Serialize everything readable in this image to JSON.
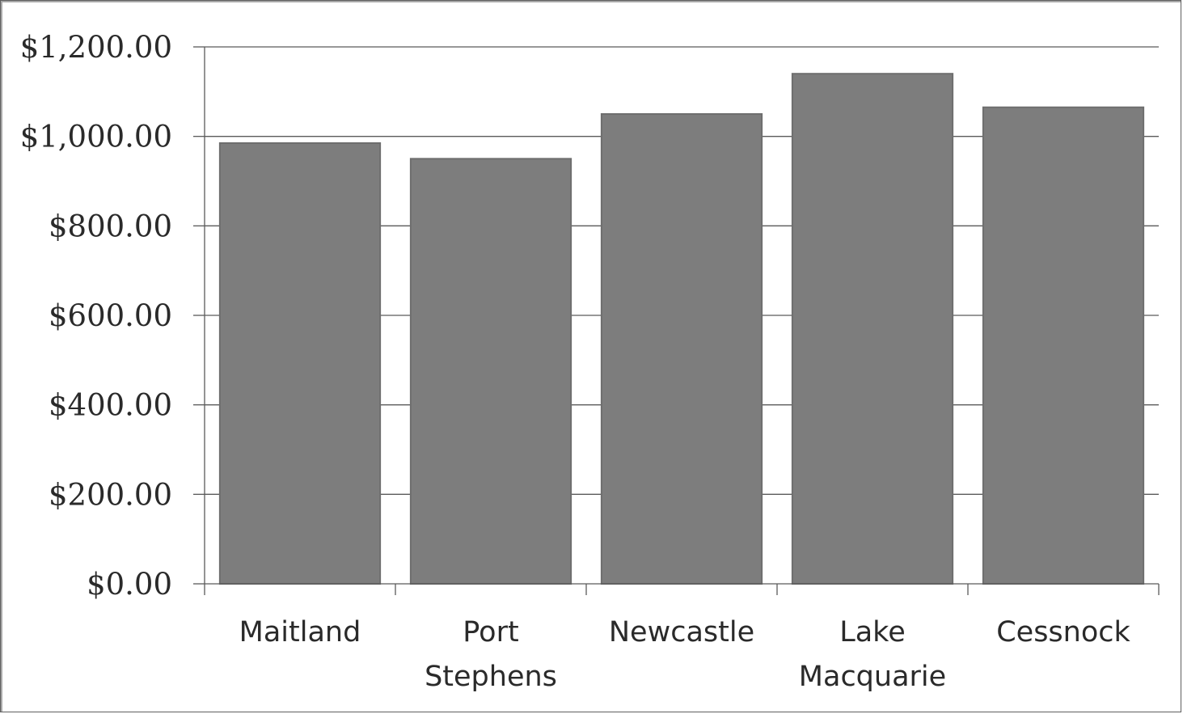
{
  "chart_data": {
    "type": "bar",
    "categories": [
      [
        "Maitland"
      ],
      [
        "Port",
        "Stephens"
      ],
      [
        "Newcastle"
      ],
      [
        "Lake",
        "Macquarie"
      ],
      [
        "Cessnock"
      ]
    ],
    "values": [
      985,
      950,
      1050,
      1140,
      1065
    ],
    "yticks": [
      "$0.00",
      "$200.00",
      "$400.00",
      "$600.00",
      "$800.00",
      "$1,000.00",
      "$1,200.00"
    ],
    "ylim": [
      0,
      1200
    ],
    "grid": true,
    "legend": "none",
    "bar_color": "#7d7d7d",
    "grid_color": "#5a5a5a"
  }
}
